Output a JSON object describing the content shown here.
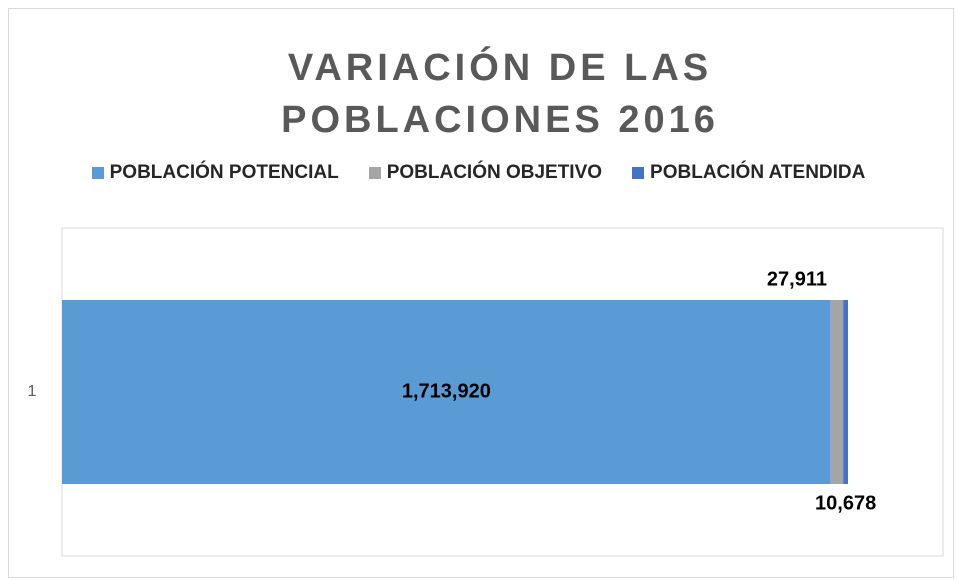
{
  "chart_data": {
    "type": "stacked-bar-horizontal",
    "title": "VARIACIÓN DE LAS POBLACIONES 2016",
    "categories": [
      "1"
    ],
    "series": [
      {
        "name": "POBLACIÓN POTENCIAL",
        "color": "#5b9bd5",
        "values": [
          1713920
        ],
        "value_labels": [
          "1,713,920"
        ]
      },
      {
        "name": "POBLACIÓN OBJETIVO",
        "color": "#a5a5a5",
        "values": [
          27911
        ],
        "value_labels": [
          "27,911"
        ]
      },
      {
        "name": "POBLACIÓN ATENDIDA",
        "color": "#4472c4",
        "values": [
          10678
        ],
        "value_labels": [
          "10,678"
        ]
      }
    ],
    "legend": "top"
  }
}
